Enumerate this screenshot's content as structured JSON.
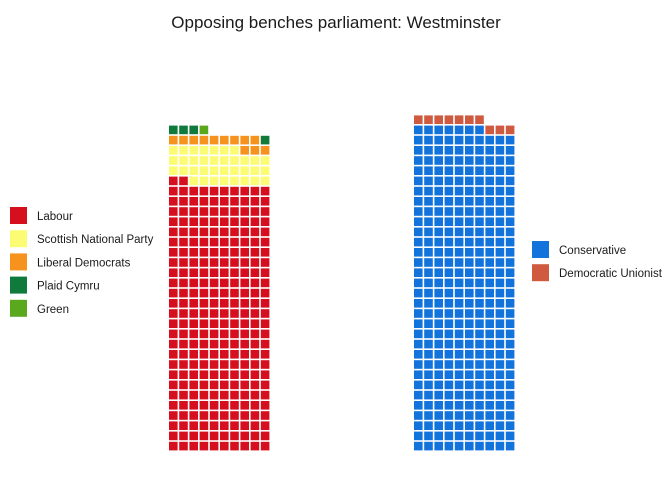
{
  "chart_data": {
    "type": "waffle",
    "title": "Opposing benches parliament: Westminster",
    "unit": "seat",
    "benches": [
      {
        "side": "left",
        "parties": [
          {
            "name": "Labour",
            "seats": 262,
            "color": "#d50f1e"
          },
          {
            "name": "Scottish National Party",
            "seats": 35,
            "color": "#fcfc74"
          },
          {
            "name": "Liberal Democrats",
            "seats": 12,
            "color": "#f6931f"
          },
          {
            "name": "Plaid Cymru",
            "seats": 4,
            "color": "#0f7a3c"
          },
          {
            "name": "Green",
            "seats": 1,
            "color": "#5aa91d"
          }
        ]
      },
      {
        "side": "right",
        "parties": [
          {
            "name": "Conservative",
            "seats": 317,
            "color": "#1273dc"
          },
          {
            "name": "Democratic Unionist",
            "seats": 10,
            "color": "#cf5a40"
          }
        ]
      }
    ]
  }
}
